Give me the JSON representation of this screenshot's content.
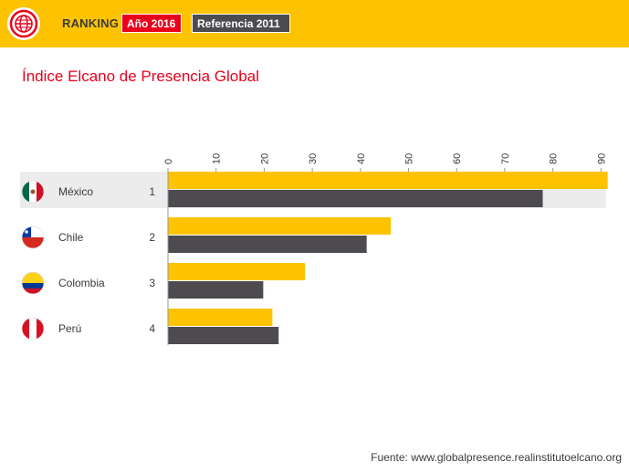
{
  "header": {
    "logo_icon": "globe-icon",
    "ranking_label": "RANKING",
    "year_button_label": "Año 2016",
    "reference_button_label": "Referencia 2011"
  },
  "colors": {
    "header_bg": "#fdc300",
    "series_2016": "#fdc300",
    "series_2011": "#4d4b4f",
    "title": "#e8001c",
    "button_2016": "#e8001c",
    "button_2011": "#4d4b4f",
    "highlight_row": "#ececec"
  },
  "chart_data": {
    "type": "bar",
    "orientation": "horizontal",
    "title": "Índice Elcano de Presencia Global",
    "categories": [
      "México",
      "Chile",
      "Colombia",
      "Perú"
    ],
    "ranks": [
      "1",
      "2",
      "3",
      "4"
    ],
    "flags": [
      "mexico-flag-icon",
      "chile-flag-icon",
      "colombia-flag-icon",
      "peru-flag-icon"
    ],
    "series": [
      {
        "values": [
          91.4,
          46.3,
          28.5,
          21.7
        ]
      },
      {
        "values": [
          77.9,
          41.3,
          19.8,
          23.0
        ]
      }
    ],
    "xlim": [
      0,
      91
    ],
    "x_ticks": [
      0,
      10,
      20,
      30,
      40,
      50,
      60,
      70,
      80,
      90
    ],
    "tick_position": "top",
    "highlighted_category": "México"
  },
  "footer": {
    "source": "Fuente: www.globalpresence.realinstitutoelcano.org"
  }
}
